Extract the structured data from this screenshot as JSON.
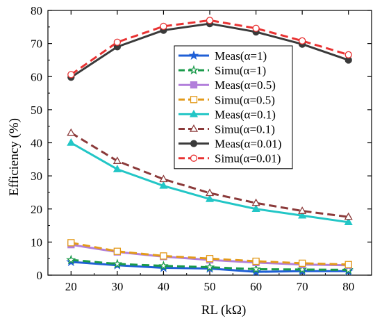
{
  "chart_data": {
    "type": "line",
    "xlabel": "RL (kΩ)",
    "ylabel": "Efficiency (%)",
    "x": [
      20,
      30,
      40,
      50,
      60,
      70,
      80
    ],
    "xlim": [
      15,
      85
    ],
    "ylim": [
      0,
      80
    ],
    "xticks": [
      "20",
      "30",
      "40",
      "50",
      "60",
      "70",
      "80"
    ],
    "yticks": [
      "0",
      "10",
      "20",
      "30",
      "40",
      "50",
      "60",
      "70",
      "80"
    ],
    "grid": false,
    "legend_position": "center",
    "series": [
      {
        "name": "Meas(α=1)",
        "values": [
          4.0,
          3.0,
          2.2,
          2.0,
          1.0,
          1.2,
          1.2
        ],
        "color": "#1f5fd6",
        "dash": "solid",
        "marker": "star-filled"
      },
      {
        "name": "Simu(α=1)",
        "values": [
          4.6,
          3.4,
          2.8,
          2.4,
          1.8,
          1.7,
          1.6
        ],
        "color": "#1a9a4a",
        "dash": "dashed",
        "marker": "star-open"
      },
      {
        "name": "Meas(α=0.5)",
        "values": [
          9.2,
          7.0,
          5.6,
          4.6,
          3.8,
          3.2,
          3.0
        ],
        "color": "#b27fdb",
        "dash": "solid",
        "marker": "square-filled"
      },
      {
        "name": "Simu(α=0.5)",
        "values": [
          9.8,
          7.2,
          5.8,
          5.0,
          4.2,
          3.6,
          3.2
        ],
        "color": "#e39a1a",
        "dash": "dashed",
        "marker": "square-open"
      },
      {
        "name": "Meas(α=0.1)",
        "values": [
          40.0,
          32.0,
          27.0,
          23.0,
          20.0,
          18.0,
          16.0
        ],
        "color": "#22c6c6",
        "dash": "solid",
        "marker": "triangle-filled"
      },
      {
        "name": "Simu(α=0.1)",
        "values": [
          43.0,
          34.5,
          29.0,
          24.8,
          21.8,
          19.4,
          17.6
        ],
        "color": "#8b3a3a",
        "dash": "dashed",
        "marker": "triangle-open"
      },
      {
        "name": "Meas(α=0.01)",
        "values": [
          59.8,
          69.0,
          74.0,
          76.0,
          73.5,
          69.8,
          65.0
        ],
        "color": "#3a3a3a",
        "dash": "solid",
        "marker": "circle-filled"
      },
      {
        "name": "Simu(α=0.01)",
        "values": [
          60.6,
          70.4,
          75.2,
          77.0,
          74.6,
          70.8,
          66.6
        ],
        "color": "#e83232",
        "dash": "dashed",
        "marker": "circle-open"
      }
    ]
  }
}
